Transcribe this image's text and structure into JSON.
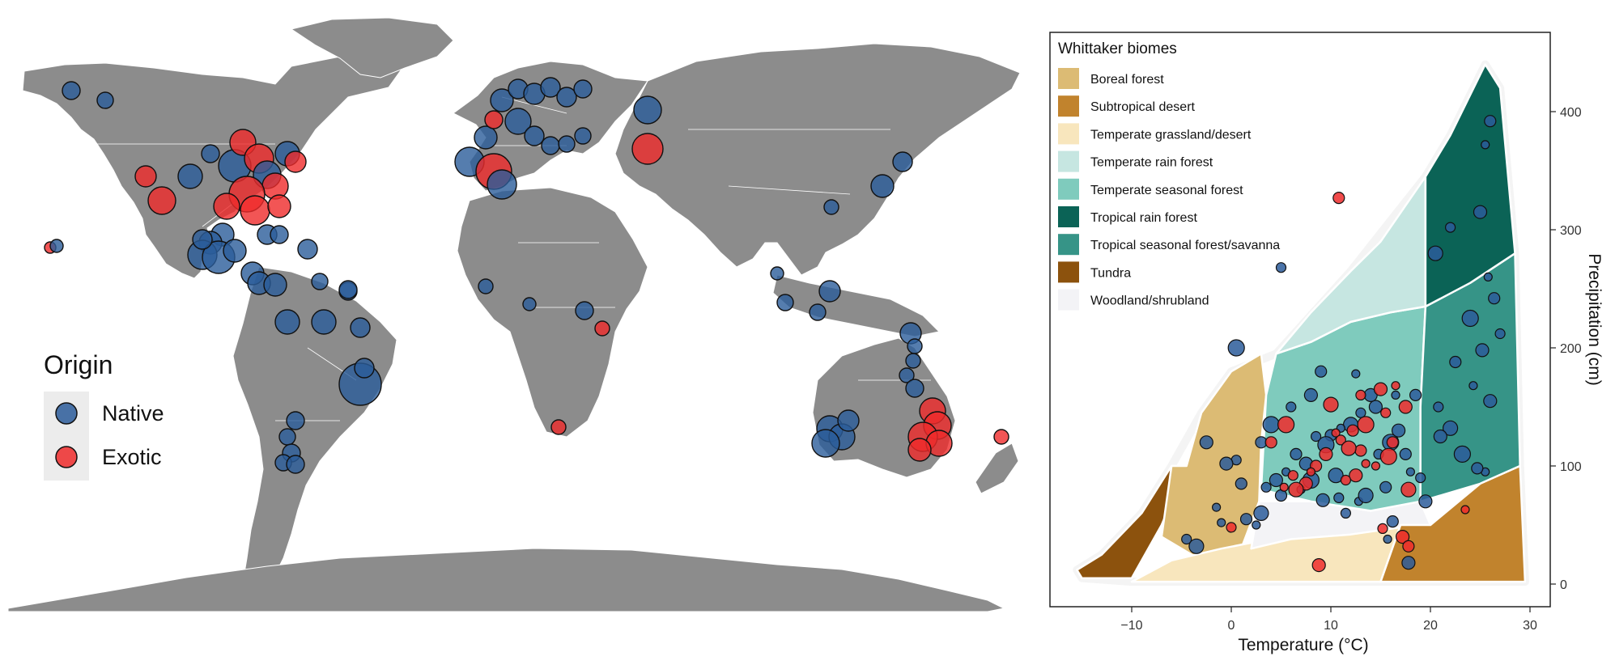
{
  "map": {
    "legend": {
      "title": "Origin",
      "items": [
        {
          "label": "Native",
          "color": "#2b5c9a"
        },
        {
          "label": "Exotic",
          "color": "#ef2b2b"
        }
      ]
    },
    "colors": {
      "land": "#8c8c8c",
      "border": "#ffffff",
      "native": "#2b5c9a",
      "exotic": "#ef2b2b"
    },
    "note": ""
  },
  "chart_data": {
    "type": "scatter",
    "title": "",
    "xlabel": "Temperature (°C)",
    "ylabel": "Precipitation (cm)",
    "xlim": [
      -18,
      31
    ],
    "ylim": [
      -10,
      445
    ],
    "xticks": [
      -10,
      0,
      10,
      20,
      30
    ],
    "yticks": [
      0,
      100,
      200,
      300,
      400
    ],
    "grid": false,
    "legend": {
      "title": "Whittaker biomes",
      "placement": "top-left",
      "items": [
        {
          "label": "Boreal forest",
          "color": "#dcbb74"
        },
        {
          "label": "Subtropical desert",
          "color": "#c1832d"
        },
        {
          "label": "Temperate grassland/desert",
          "color": "#f8e6bd"
        },
        {
          "label": "Temperate rain forest",
          "color": "#c6e6e1"
        },
        {
          "label": "Temperate seasonal forest",
          "color": "#7fcbbd"
        },
        {
          "label": "Tropical rain forest",
          "color": "#0b6356"
        },
        {
          "label": "Tropical seasonal forest/savanna",
          "color": "#369487"
        },
        {
          "label": "Tundra",
          "color": "#8c520d"
        },
        {
          "label": "Woodland/shrubland",
          "color": "#f3f3f6"
        }
      ]
    },
    "series": [
      {
        "name": "Native",
        "color": "#2b5c9a",
        "points": [
          [
            26,
            392
          ],
          [
            25.5,
            372
          ],
          [
            25,
            315
          ],
          [
            22,
            302
          ],
          [
            20.5,
            280
          ],
          [
            25.8,
            260
          ],
          [
            26.4,
            242
          ],
          [
            24,
            225
          ],
          [
            27,
            212
          ],
          [
            25.2,
            198
          ],
          [
            22.5,
            188
          ],
          [
            24.3,
            168
          ],
          [
            26,
            155
          ],
          [
            20.8,
            150
          ],
          [
            22,
            132
          ],
          [
            25.5,
            95
          ],
          [
            24.7,
            98
          ],
          [
            23.2,
            110
          ],
          [
            19,
            90
          ],
          [
            21,
            125
          ],
          [
            18.5,
            160
          ],
          [
            16.5,
            160
          ],
          [
            14.5,
            150
          ],
          [
            13,
            145
          ],
          [
            12,
            135
          ],
          [
            11,
            132
          ],
          [
            10,
            126
          ],
          [
            9.5,
            118
          ],
          [
            8.5,
            125
          ],
          [
            7.5,
            102
          ],
          [
            6.5,
            110
          ],
          [
            5.5,
            95
          ],
          [
            4.5,
            88
          ],
          [
            3.5,
            82
          ],
          [
            3,
            60
          ],
          [
            2.5,
            50
          ],
          [
            1.5,
            55
          ],
          [
            0.5,
            200
          ],
          [
            0.5,
            105
          ],
          [
            -0.5,
            102
          ],
          [
            1,
            85
          ],
          [
            -1.5,
            65
          ],
          [
            -2.5,
            120
          ],
          [
            -4.5,
            38
          ],
          [
            -3.5,
            32
          ],
          [
            -1,
            52
          ],
          [
            3,
            120
          ],
          [
            4,
            135
          ],
          [
            6,
            150
          ],
          [
            8,
            160
          ],
          [
            9,
            180
          ],
          [
            12.5,
            178
          ],
          [
            14,
            160
          ],
          [
            5,
            268
          ],
          [
            10.5,
            92
          ],
          [
            12.8,
            70
          ],
          [
            15.5,
            82
          ],
          [
            16,
            120
          ],
          [
            14.8,
            110
          ],
          [
            16.8,
            130
          ],
          [
            17.5,
            110
          ],
          [
            18,
            95
          ],
          [
            19.5,
            70
          ],
          [
            11.5,
            60
          ],
          [
            13.5,
            75
          ],
          [
            7,
            80
          ],
          [
            5,
            75
          ],
          [
            8,
            88
          ],
          [
            10.8,
            73
          ],
          [
            9.2,
            71
          ],
          [
            16.2,
            53
          ],
          [
            15.7,
            38
          ],
          [
            17.8,
            18
          ]
        ]
      },
      {
        "name": "Exotic",
        "color": "#ef2b2b",
        "points": [
          [
            10.8,
            327
          ],
          [
            16.5,
            168
          ],
          [
            15,
            165
          ],
          [
            13,
            160
          ],
          [
            10,
            152
          ],
          [
            10.5,
            128
          ],
          [
            12.2,
            130
          ],
          [
            13.5,
            135
          ],
          [
            11,
            122
          ],
          [
            9.5,
            110
          ],
          [
            8.5,
            100
          ],
          [
            8,
            95
          ],
          [
            7.5,
            85
          ],
          [
            6.2,
            92
          ],
          [
            6.5,
            80
          ],
          [
            5.3,
            82
          ],
          [
            4,
            120
          ],
          [
            5.5,
            135
          ],
          [
            15.5,
            145
          ],
          [
            17.5,
            150
          ],
          [
            16.2,
            120
          ],
          [
            14.5,
            100
          ],
          [
            12.5,
            92
          ],
          [
            11.5,
            88
          ],
          [
            17.8,
            80
          ],
          [
            13.5,
            102
          ],
          [
            13,
            113
          ],
          [
            15.8,
            108
          ],
          [
            15.2,
            47
          ],
          [
            17.2,
            40
          ],
          [
            17.8,
            32
          ],
          [
            23.5,
            63
          ],
          [
            8.8,
            16
          ],
          [
            0,
            48
          ],
          [
            11.8,
            115
          ]
        ]
      }
    ]
  }
}
